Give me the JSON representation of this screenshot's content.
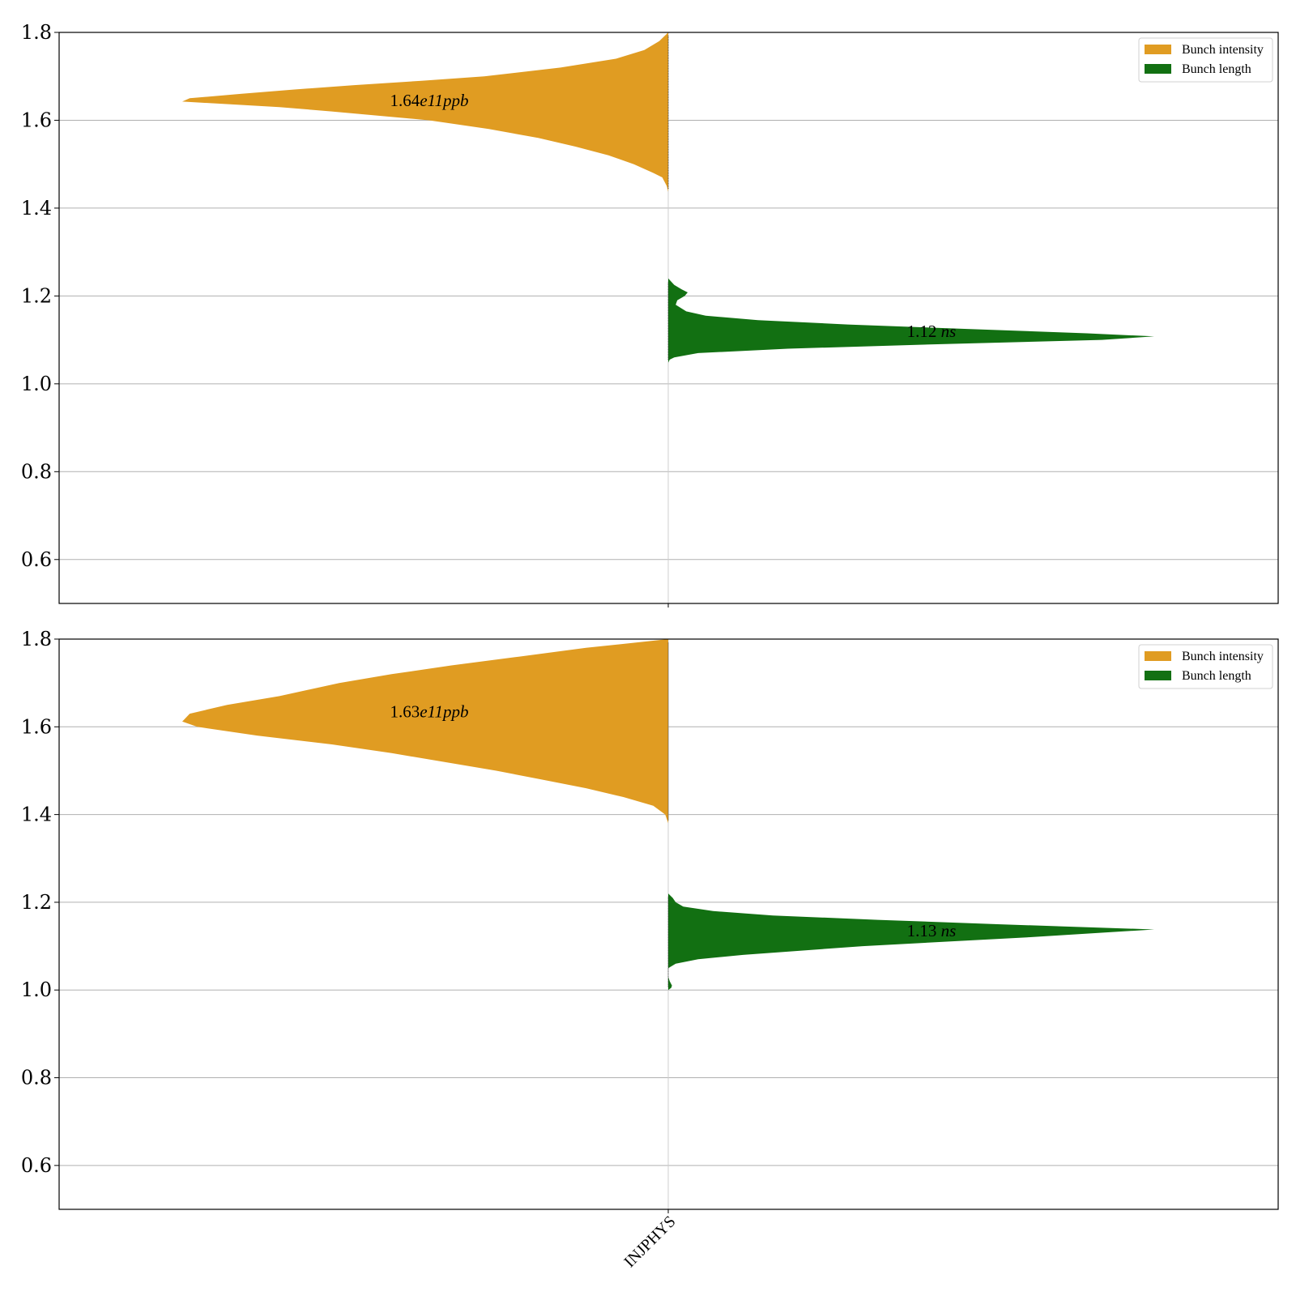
{
  "chart_data": [
    {
      "type": "violin",
      "ylim": [
        0.5,
        1.8
      ],
      "yticks": [
        "0.6",
        "0.8",
        "1.0",
        "1.2",
        "1.4",
        "1.6",
        "1.8"
      ],
      "grid": "y",
      "legend_position": "top-right",
      "categories": [
        "INJPHYS"
      ],
      "series": [
        {
          "name": "Bunch intensity",
          "side": "left",
          "color": "#E09C22",
          "label_value": "1.64",
          "label_exp": "e11",
          "label_unit": "ppb",
          "label_y": 1.645,
          "profile": [
            [
              1.437,
              0.0
            ],
            [
              1.45,
              0.01
            ],
            [
              1.47,
              0.04
            ],
            [
              1.48,
              0.1
            ],
            [
              1.5,
              0.23
            ],
            [
              1.52,
              0.4
            ],
            [
              1.54,
              0.62
            ],
            [
              1.56,
              0.87
            ],
            [
              1.58,
              1.2
            ],
            [
              1.6,
              1.6
            ],
            [
              1.62,
              2.25
            ],
            [
              1.63,
              2.6
            ],
            [
              1.6425,
              3.25
            ],
            [
              1.65,
              3.2
            ],
            [
              1.66,
              2.86
            ],
            [
              1.67,
              2.5
            ],
            [
              1.68,
              2.1
            ],
            [
              1.69,
              1.65
            ],
            [
              1.7,
              1.23
            ],
            [
              1.72,
              0.72
            ],
            [
              1.74,
              0.35
            ],
            [
              1.76,
              0.16
            ],
            [
              1.78,
              0.06
            ],
            [
              1.8,
              0.0
            ]
          ]
        },
        {
          "name": "Bunch length",
          "side": "right",
          "color": "#127012",
          "label_value": "1.12",
          "label_unit": "ns",
          "label_y": 1.12,
          "profile": [
            [
              1.048,
              0.0
            ],
            [
              1.055,
              0.01
            ],
            [
              1.06,
              0.04
            ],
            [
              1.07,
              0.2
            ],
            [
              1.08,
              0.8
            ],
            [
              1.09,
              1.8
            ],
            [
              1.1,
              2.9
            ],
            [
              1.108,
              3.25
            ],
            [
              1.115,
              2.8
            ],
            [
              1.125,
              2.0
            ],
            [
              1.135,
              1.2
            ],
            [
              1.145,
              0.6
            ],
            [
              1.155,
              0.25
            ],
            [
              1.165,
              0.12
            ],
            [
              1.18,
              0.05
            ],
            [
              1.19,
              0.06
            ],
            [
              1.2,
              0.11
            ],
            [
              1.208,
              0.13
            ],
            [
              1.215,
              0.09
            ],
            [
              1.225,
              0.04
            ],
            [
              1.24,
              0.0
            ]
          ]
        }
      ],
      "legend": [
        "Bunch intensity",
        "Bunch length"
      ]
    },
    {
      "type": "violin",
      "ylim": [
        0.5,
        1.8
      ],
      "yticks": [
        "0.6",
        "0.8",
        "1.0",
        "1.2",
        "1.4",
        "1.6",
        "1.8"
      ],
      "grid": "y",
      "legend_position": "top-right",
      "categories": [
        "INJPHYS"
      ],
      "xtick_label": "INJPHYS",
      "series": [
        {
          "name": "Bunch intensity",
          "side": "left",
          "color": "#E09C22",
          "label_value": "1.63",
          "label_exp": "e11",
          "label_unit": "ppb",
          "label_y": 1.635,
          "profile": [
            [
              1.38,
              0.0
            ],
            [
              1.4,
              0.02
            ],
            [
              1.42,
              0.1
            ],
            [
              1.44,
              0.3
            ],
            [
              1.46,
              0.55
            ],
            [
              1.48,
              0.85
            ],
            [
              1.5,
              1.15
            ],
            [
              1.52,
              1.5
            ],
            [
              1.54,
              1.85
            ],
            [
              1.56,
              2.25
            ],
            [
              1.58,
              2.75
            ],
            [
              1.6,
              3.15
            ],
            [
              1.612,
              3.25
            ],
            [
              1.63,
              3.2
            ],
            [
              1.65,
              2.95
            ],
            [
              1.67,
              2.6
            ],
            [
              1.7,
              2.2
            ],
            [
              1.72,
              1.85
            ],
            [
              1.74,
              1.45
            ],
            [
              1.76,
              1.0
            ],
            [
              1.78,
              0.55
            ],
            [
              1.8,
              0.0
            ]
          ]
        },
        {
          "name": "Bunch length",
          "side": "right",
          "color": "#127012",
          "label_value": "1.13",
          "label_unit": "ns",
          "label_y": 1.135,
          "profile": [
            [
              1.0,
              0.0
            ],
            [
              1.005,
              0.02
            ],
            [
              1.01,
              0.025
            ],
            [
              1.02,
              0.01
            ],
            [
              1.03,
              0.0
            ],
            [
              1.05,
              0.0
            ],
            [
              1.06,
              0.05
            ],
            [
              1.07,
              0.2
            ],
            [
              1.08,
              0.5
            ],
            [
              1.1,
              1.3
            ],
            [
              1.12,
              2.4
            ],
            [
              1.138,
              3.25
            ],
            [
              1.15,
              2.2
            ],
            [
              1.16,
              1.4
            ],
            [
              1.17,
              0.7
            ],
            [
              1.18,
              0.3
            ],
            [
              1.19,
              0.1
            ],
            [
              1.2,
              0.05
            ],
            [
              1.21,
              0.03
            ],
            [
              1.22,
              0.0
            ]
          ]
        }
      ],
      "legend": [
        "Bunch intensity",
        "Bunch length"
      ]
    }
  ]
}
